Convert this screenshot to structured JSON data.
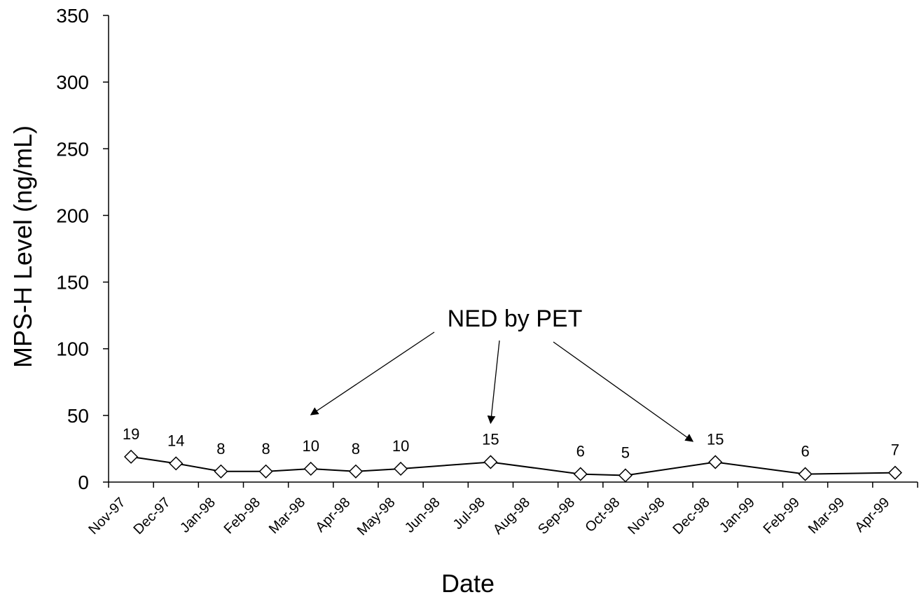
{
  "chart_data": {
    "type": "line",
    "xlabel": "Date",
    "ylabel": "MPS-H Level (ng/mL)",
    "ylim": [
      0,
      350
    ],
    "yticks": [
      0,
      50,
      100,
      150,
      200,
      250,
      300,
      350
    ],
    "categories": [
      "Nov-97",
      "Dec-97",
      "Jan-98",
      "Feb-98",
      "Mar-98",
      "Apr-98",
      "May-98",
      "Jun-98",
      "Jul-98",
      "Aug-98",
      "Sep-98",
      "Oct-98",
      "Nov-98",
      "Dec-98",
      "Jan-99",
      "Feb-99",
      "Mar-99",
      "Apr-99"
    ],
    "grid": false,
    "legend": "none",
    "series": [
      {
        "marker": "open-diamond",
        "color": "#000000",
        "points": [
          {
            "x": 0.5,
            "y": 19,
            "label": "19"
          },
          {
            "x": 1.5,
            "y": 14,
            "label": "14"
          },
          {
            "x": 2.5,
            "y": 8,
            "label": "8"
          },
          {
            "x": 3.5,
            "y": 8,
            "label": "8"
          },
          {
            "x": 4.5,
            "y": 10,
            "label": "10"
          },
          {
            "x": 5.5,
            "y": 8,
            "label": "8"
          },
          {
            "x": 6.5,
            "y": 10,
            "label": "10"
          },
          {
            "x": 8.5,
            "y": 15,
            "label": "15"
          },
          {
            "x": 10.5,
            "y": 6,
            "label": "6"
          },
          {
            "x": 11.5,
            "y": 5,
            "label": "5"
          },
          {
            "x": 13.5,
            "y": 15,
            "label": "15"
          },
          {
            "x": 15.5,
            "y": 6,
            "label": "6"
          },
          {
            "x": 17.5,
            "y": 7,
            "label": "7"
          }
        ]
      }
    ],
    "annotations": [
      {
        "text": "NED by PET",
        "arrows_to_x": [
          4.5,
          8.5,
          13
        ]
      }
    ]
  }
}
